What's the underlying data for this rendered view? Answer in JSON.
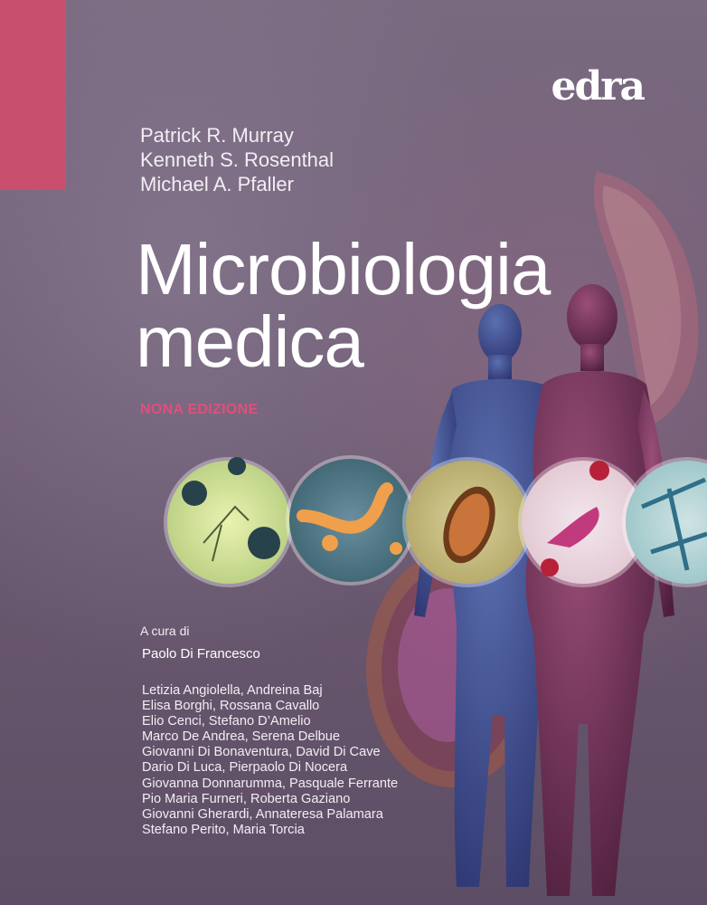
{
  "publisher": {
    "logo_text": "edra"
  },
  "authors": [
    "Patrick R. Murray",
    "Kenneth S. Rosenthal",
    "Michael A. Pfaller"
  ],
  "title": {
    "line1": "Microbiologia",
    "line2": "medica"
  },
  "edition": "NONA EDIZIONE",
  "curated_by_label": "A cura di",
  "editor": "Paolo Di Francesco",
  "contributors": [
    "Letizia Angiolella, Andreina Baj",
    "Elisa Borghi, Rossana Cavallo",
    "Elio Cenci, Stefano D’Amelio",
    "Marco De Andrea, Serena Delbue",
    "Giovanni Di Bonaventura, David Di Cave",
    "Dario Di Luca, Pierpaolo Di Nocera",
    "Giovanna Donnarumma, Pasquale Ferrante",
    "Pio Maria Furneri, Roberta Gaziano",
    "Giovanni Gherardi, Annateresa Palamara",
    "Stefano Perito, Maria Torcia"
  ],
  "colors": {
    "accent_pink": "#c8506e",
    "edition_pink": "#e14f7b",
    "background": "#6e5e74"
  },
  "illustrations": [
    "male-figure",
    "female-figure",
    "microscopy-circles",
    "bacteria-background"
  ]
}
